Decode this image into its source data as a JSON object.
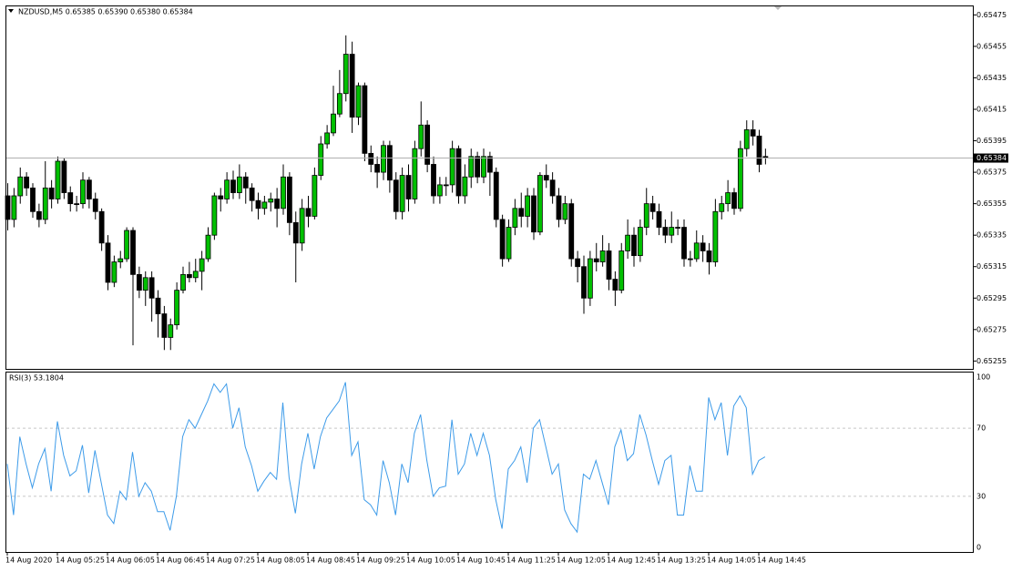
{
  "chart_data": [
    {
      "type": "candlestick",
      "title": "NZDUSD,M5  0.65385 0.65390 0.65380 0.65384",
      "categories": [
        "14 Aug 2020",
        null,
        null,
        null,
        null,
        null,
        null,
        null,
        "14 Aug 05:25",
        null,
        null,
        null,
        null,
        null,
        null,
        null,
        "14 Aug 06:05",
        null,
        null,
        null,
        null,
        null,
        null,
        null,
        "14 Aug 06:45",
        null,
        null,
        null,
        null,
        null,
        null,
        null,
        "14 Aug 07:25",
        null,
        null,
        null,
        null,
        null,
        null,
        null,
        "14 Aug 08:05",
        null,
        null,
        null,
        null,
        null,
        null,
        null,
        "14 Aug 08:45",
        null,
        null,
        null,
        null,
        null,
        null,
        null,
        "14 Aug 09:25",
        null,
        null,
        null,
        null,
        null,
        null,
        null,
        "14 Aug 10:05",
        null,
        null,
        null,
        null,
        null,
        null,
        null,
        "14 Aug 10:45",
        null,
        null,
        null,
        null,
        null,
        null,
        null,
        "14 Aug 11:25",
        null,
        null,
        null,
        null,
        null,
        null,
        null,
        "14 Aug 12:05",
        null,
        null,
        null,
        null,
        null,
        null,
        null,
        "14 Aug 12:45",
        null,
        null,
        null,
        null,
        null,
        null,
        null,
        "14 Aug 13:25",
        null,
        null,
        null,
        null,
        null,
        null,
        null,
        "14 Aug 14:05",
        null,
        null,
        null,
        null,
        null,
        null,
        null,
        "14 Aug 14:45",
        null
      ],
      "open": [
        0.6536,
        0.65345,
        0.6536,
        0.65372,
        0.65365,
        0.6535,
        0.65345,
        0.65365,
        0.65358,
        0.65382,
        0.65362,
        0.65355,
        0.65355,
        0.6537,
        0.65358,
        0.6535,
        0.6533,
        0.65305,
        0.65318,
        0.6532,
        0.65338,
        0.6531,
        0.653,
        0.65308,
        0.65295,
        0.65285,
        0.6527,
        0.65278,
        0.653,
        0.6531,
        0.65308,
        0.65312,
        0.6532,
        0.65335,
        0.6536,
        0.65358,
        0.6537,
        0.65362,
        0.65372,
        0.65365,
        0.65357,
        0.65352,
        0.65356,
        0.65358,
        0.65352,
        0.65372,
        0.65343,
        0.6533,
        0.65352,
        0.65347,
        0.65373,
        0.65393,
        0.654,
        0.65412,
        0.65425,
        0.6545,
        0.6541,
        0.6543,
        0.65387,
        0.6538,
        0.65375,
        0.65392,
        0.6537,
        0.6535,
        0.65373,
        0.65358,
        0.6539,
        0.65405,
        0.6538,
        0.6536,
        0.65367,
        0.65367,
        0.6539,
        0.6536,
        0.65372,
        0.65385,
        0.65372,
        0.65385,
        0.65375,
        0.65345,
        0.6532,
        0.6534,
        0.65352,
        0.65347,
        0.6536,
        0.65337,
        0.65373,
        0.6537,
        0.6536,
        0.65345,
        0.65355,
        0.6532,
        0.65315,
        0.65295,
        0.6532,
        0.65318,
        0.65325,
        0.65307,
        0.653,
        0.65325,
        0.65335,
        0.65322,
        0.6534,
        0.65355,
        0.6535,
        0.6534,
        0.65335,
        0.6534,
        0.6534,
        0.6532,
        0.6532,
        0.6533,
        0.65325,
        0.65318,
        0.6535,
        0.65355,
        0.65362,
        0.65352,
        0.6539,
        0.65402,
        0.65398,
        0.65385
      ],
      "high": [
        0.65368,
        0.65365,
        0.65378,
        0.65375,
        0.65368,
        0.65355,
        0.65382,
        0.6537,
        0.65385,
        0.65384,
        0.65366,
        0.6536,
        0.65375,
        0.65372,
        0.65362,
        0.65352,
        0.65335,
        0.65322,
        0.65325,
        0.6534,
        0.6534,
        0.65315,
        0.65312,
        0.65312,
        0.653,
        0.6529,
        0.65282,
        0.65305,
        0.65315,
        0.65318,
        0.6532,
        0.65325,
        0.6534,
        0.65362,
        0.65365,
        0.65375,
        0.65376,
        0.6538,
        0.65375,
        0.65368,
        0.65362,
        0.6536,
        0.65362,
        0.65365,
        0.6538,
        0.65375,
        0.6535,
        0.65358,
        0.6536,
        0.65378,
        0.65398,
        0.65405,
        0.6543,
        0.6544,
        0.65462,
        0.65458,
        0.65432,
        0.65432,
        0.65392,
        0.65385,
        0.65395,
        0.65395,
        0.65375,
        0.65378,
        0.6538,
        0.65395,
        0.6542,
        0.65408,
        0.65385,
        0.65372,
        0.65372,
        0.65395,
        0.65392,
        0.6538,
        0.6539,
        0.65388,
        0.6539,
        0.65388,
        0.65378,
        0.65348,
        0.65345,
        0.65358,
        0.65362,
        0.65365,
        0.65365,
        0.65375,
        0.6538,
        0.65375,
        0.65365,
        0.6536,
        0.65358,
        0.65325,
        0.65322,
        0.65325,
        0.6533,
        0.65335,
        0.6533,
        0.65312,
        0.6533,
        0.65345,
        0.6534,
        0.65345,
        0.65365,
        0.6536,
        0.65355,
        0.65345,
        0.6535,
        0.65345,
        0.65345,
        0.65325,
        0.65338,
        0.65335,
        0.6533,
        0.65358,
        0.6536,
        0.6537,
        0.65365,
        0.65395,
        0.65408,
        0.65408,
        0.65402,
        0.6539
      ],
      "low": [
        0.65338,
        0.6534,
        0.65355,
        0.6536,
        0.65346,
        0.6534,
        0.65342,
        0.65352,
        0.65355,
        0.65358,
        0.6535,
        0.6535,
        0.65352,
        0.65352,
        0.65345,
        0.65325,
        0.653,
        0.65302,
        0.65314,
        0.65318,
        0.65265,
        0.65295,
        0.6529,
        0.6528,
        0.6527,
        0.65262,
        0.65262,
        0.65275,
        0.65298,
        0.65305,
        0.65305,
        0.653,
        0.65318,
        0.65332,
        0.6535,
        0.65355,
        0.65358,
        0.65358,
        0.65355,
        0.6535,
        0.65345,
        0.65348,
        0.6535,
        0.6534,
        0.65348,
        0.65335,
        0.65305,
        0.65325,
        0.6534,
        0.65345,
        0.6537,
        0.6539,
        0.65398,
        0.6541,
        0.6542,
        0.654,
        0.65405,
        0.65382,
        0.65375,
        0.65365,
        0.6537,
        0.65362,
        0.65345,
        0.65345,
        0.6535,
        0.65355,
        0.65385,
        0.65375,
        0.65355,
        0.65355,
        0.6536,
        0.65362,
        0.65355,
        0.65355,
        0.65365,
        0.65368,
        0.65368,
        0.6536,
        0.6534,
        0.65315,
        0.65318,
        0.65335,
        0.6534,
        0.6534,
        0.65332,
        0.65335,
        0.65365,
        0.65355,
        0.6534,
        0.65342,
        0.65315,
        0.65305,
        0.65285,
        0.6529,
        0.65312,
        0.65315,
        0.653,
        0.6529,
        0.65298,
        0.6532,
        0.65315,
        0.65318,
        0.65335,
        0.65345,
        0.65335,
        0.6533,
        0.6533,
        0.65335,
        0.65315,
        0.65315,
        0.65318,
        0.65318,
        0.6531,
        0.65315,
        0.65345,
        0.6535,
        0.65348,
        0.6535,
        0.65385,
        0.65392,
        0.65375,
        0.6538
      ],
      "close": [
        0.65345,
        0.6536,
        0.65372,
        0.65365,
        0.6535,
        0.65345,
        0.65365,
        0.65358,
        0.65382,
        0.65362,
        0.65355,
        0.65355,
        0.6537,
        0.65358,
        0.6535,
        0.6533,
        0.65305,
        0.65318,
        0.6532,
        0.65338,
        0.6531,
        0.653,
        0.65308,
        0.65295,
        0.65285,
        0.6527,
        0.65278,
        0.653,
        0.6531,
        0.65308,
        0.65312,
        0.6532,
        0.65335,
        0.6536,
        0.65358,
        0.6537,
        0.65362,
        0.65372,
        0.65365,
        0.65357,
        0.65352,
        0.65356,
        0.65358,
        0.65352,
        0.65372,
        0.65343,
        0.6533,
        0.65352,
        0.65347,
        0.65373,
        0.65393,
        0.654,
        0.65412,
        0.65425,
        0.6545,
        0.6541,
        0.6543,
        0.65387,
        0.6538,
        0.65375,
        0.65392,
        0.6537,
        0.6535,
        0.65373,
        0.65358,
        0.6539,
        0.65405,
        0.6538,
        0.6536,
        0.65367,
        0.65367,
        0.6539,
        0.6536,
        0.65372,
        0.65385,
        0.65372,
        0.65385,
        0.65375,
        0.65345,
        0.6532,
        0.6534,
        0.65352,
        0.65347,
        0.6536,
        0.65337,
        0.65373,
        0.6537,
        0.6536,
        0.65345,
        0.65355,
        0.6532,
        0.65315,
        0.65295,
        0.6532,
        0.65318,
        0.65325,
        0.65307,
        0.653,
        0.65325,
        0.65335,
        0.65322,
        0.6534,
        0.65355,
        0.6535,
        0.6534,
        0.65335,
        0.6534,
        0.6534,
        0.6532,
        0.6532,
        0.6533,
        0.65325,
        0.65318,
        0.6535,
        0.65355,
        0.65362,
        0.65352,
        0.6539,
        0.65402,
        0.65398,
        0.6538,
        0.65384
      ],
      "up_color": "#00c000",
      "down_color": "#000000",
      "ylim": [
        0.6525,
        0.65481
      ],
      "yticks": [
        0.65475,
        0.65455,
        0.65435,
        0.65415,
        0.65395,
        0.65375,
        0.65355,
        0.65335,
        0.65315,
        0.65295,
        0.65275,
        0.65255
      ]
    },
    {
      "type": "line",
      "title": "RSI(3) 53.1804",
      "color": "#3d9be9",
      "values": [
        49,
        19,
        65,
        49,
        35,
        49,
        58,
        33,
        74,
        54,
        42,
        45,
        60,
        32,
        57,
        38,
        19,
        14,
        33,
        28,
        56,
        30,
        38,
        33,
        21,
        21,
        10,
        30,
        65,
        75,
        70,
        78,
        86,
        96,
        91,
        96,
        70,
        82,
        59,
        48,
        33,
        39,
        44,
        40,
        85,
        41,
        20,
        49,
        67,
        46,
        65,
        76,
        81,
        86,
        97,
        54,
        62,
        28,
        25,
        19,
        51,
        38,
        19,
        49,
        38,
        67,
        78,
        51,
        30,
        35,
        36,
        75,
        43,
        49,
        67,
        54,
        67,
        54,
        28,
        11,
        46,
        51,
        59,
        38,
        70,
        75,
        59,
        43,
        49,
        22,
        14,
        9,
        43,
        40,
        51,
        38,
        25,
        59,
        69,
        51,
        55,
        78,
        66,
        51,
        37,
        51,
        54,
        19,
        19,
        48,
        33,
        33,
        88,
        75,
        85,
        54,
        83,
        89,
        82,
        43,
        51,
        53.1804
      ],
      "ylim": [
        0,
        100
      ],
      "yticks": [
        100,
        70,
        30,
        0
      ],
      "grid": true
    }
  ]
}
